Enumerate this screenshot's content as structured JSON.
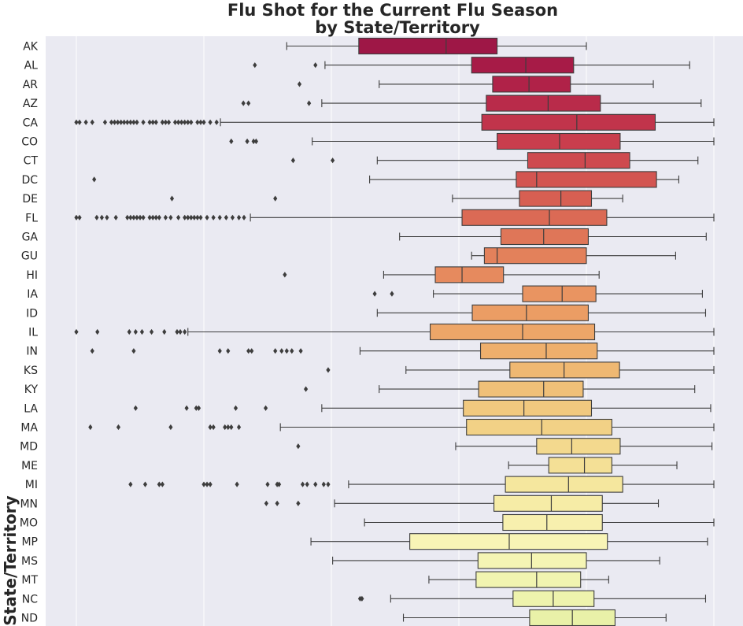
{
  "chart_data": {
    "type": "boxplot",
    "orientation": "horizontal",
    "title": "Flu Shot for the Current Flu Season\nby State/Territory",
    "ylabel": "State/Territory",
    "xlabel": "",
    "xlim": [
      -0.12,
      1.0
    ],
    "x_gridlines": [
      0.0,
      0.2,
      0.4,
      0.6,
      0.8,
      1.0
    ],
    "grid": true,
    "colormap": "Spectral (red to yellow-green)",
    "categories": [
      "AK",
      "AL",
      "AR",
      "AZ",
      "CA",
      "CO",
      "CT",
      "DC",
      "DE",
      "FL",
      "GA",
      "GU",
      "HI",
      "IA",
      "ID",
      "IL",
      "IN",
      "KS",
      "KY",
      "LA",
      "MA",
      "MD",
      "ME",
      "MI",
      "MN",
      "MO",
      "MP",
      "MS",
      "MT",
      "NC",
      "ND"
    ],
    "boxes": [
      {
        "state": "AK",
        "color": "#9e1746",
        "whislo": 0.33,
        "q1": 0.443,
        "med": 0.58,
        "q3": 0.66,
        "whishi": 0.8,
        "fliers": []
      },
      {
        "state": "AL",
        "color": "#a71b47",
        "whislo": 0.39,
        "q1": 0.62,
        "med": 0.705,
        "q3": 0.78,
        "whishi": 0.962,
        "fliers": [
          0.28,
          0.375
        ]
      },
      {
        "state": "AR",
        "color": "#b02248",
        "whislo": 0.475,
        "q1": 0.653,
        "med": 0.71,
        "q3": 0.775,
        "whishi": 0.905,
        "fliers": [
          0.35
        ]
      },
      {
        "state": "AZ",
        "color": "#b92b4a",
        "whislo": 0.385,
        "q1": 0.643,
        "med": 0.74,
        "q3": 0.822,
        "whishi": 0.98,
        "fliers": [
          0.262,
          0.27,
          0.365
        ]
      },
      {
        "state": "CA",
        "color": "#c1344b",
        "whislo": 0.226,
        "q1": 0.636,
        "med": 0.785,
        "q3": 0.908,
        "whishi": 1.0,
        "fliers": [
          0.0,
          0.005,
          0.015,
          0.025,
          0.045,
          0.055,
          0.06,
          0.065,
          0.07,
          0.075,
          0.08,
          0.085,
          0.09,
          0.095,
          0.105,
          0.115,
          0.12,
          0.125,
          0.135,
          0.14,
          0.145,
          0.155,
          0.16,
          0.165,
          0.17,
          0.175,
          0.18,
          0.19,
          0.195,
          0.2,
          0.21,
          0.22
        ]
      },
      {
        "state": "CO",
        "color": "#c93e4d",
        "whislo": 0.37,
        "q1": 0.66,
        "med": 0.758,
        "q3": 0.853,
        "whishi": 1.0,
        "fliers": [
          0.243,
          0.268,
          0.278,
          0.282
        ]
      },
      {
        "state": "CT",
        "color": "#ce4a4f",
        "whislo": 0.472,
        "q1": 0.708,
        "med": 0.798,
        "q3": 0.868,
        "whishi": 0.975,
        "fliers": [
          0.34,
          0.402
        ]
      },
      {
        "state": "DC",
        "color": "#d35551",
        "whislo": 0.46,
        "q1": 0.69,
        "med": 0.722,
        "q3": 0.91,
        "whishi": 0.945,
        "fliers": [
          0.028
        ]
      },
      {
        "state": "DE",
        "color": "#d75f52",
        "whislo": 0.59,
        "q1": 0.695,
        "med": 0.76,
        "q3": 0.808,
        "whishi": 0.857,
        "fliers": [
          0.15,
          0.312
        ]
      },
      {
        "state": "FL",
        "color": "#db6a55",
        "whislo": 0.273,
        "q1": 0.605,
        "med": 0.742,
        "q3": 0.832,
        "whishi": 1.0,
        "fliers": [
          0.0,
          0.005,
          0.032,
          0.04,
          0.048,
          0.062,
          0.08,
          0.085,
          0.09,
          0.095,
          0.1,
          0.105,
          0.115,
          0.12,
          0.125,
          0.13,
          0.14,
          0.148,
          0.16,
          0.17,
          0.175,
          0.18,
          0.185,
          0.19,
          0.195,
          0.205,
          0.215,
          0.225,
          0.235,
          0.245,
          0.255,
          0.263
        ]
      },
      {
        "state": "GA",
        "color": "#df7658",
        "whislo": 0.507,
        "q1": 0.666,
        "med": 0.733,
        "q3": 0.803,
        "whishi": 0.988,
        "fliers": []
      },
      {
        "state": "GU",
        "color": "#e3815b",
        "whislo": 0.62,
        "q1": 0.64,
        "med": 0.66,
        "q3": 0.8,
        "whishi": 0.94,
        "fliers": []
      },
      {
        "state": "HI",
        "color": "#e68a5e",
        "whislo": 0.482,
        "q1": 0.563,
        "med": 0.605,
        "q3": 0.67,
        "whishi": 0.82,
        "fliers": [
          0.327
        ]
      },
      {
        "state": "IA",
        "color": "#e99461",
        "whislo": 0.56,
        "q1": 0.7,
        "med": 0.762,
        "q3": 0.815,
        "whishi": 0.982,
        "fliers": [
          0.468,
          0.495
        ]
      },
      {
        "state": "ID",
        "color": "#eb9d64",
        "whislo": 0.472,
        "q1": 0.621,
        "med": 0.706,
        "q3": 0.803,
        "whishi": 0.987,
        "fliers": []
      },
      {
        "state": "IL",
        "color": "#eda668",
        "whislo": 0.175,
        "q1": 0.555,
        "med": 0.7,
        "q3": 0.813,
        "whishi": 1.0,
        "fliers": [
          0.0,
          0.033,
          0.083,
          0.093,
          0.103,
          0.118,
          0.138,
          0.158,
          0.163,
          0.17
        ]
      },
      {
        "state": "IN",
        "color": "#eeaf6c",
        "whislo": 0.445,
        "q1": 0.634,
        "med": 0.737,
        "q3": 0.817,
        "whishi": 1.0,
        "fliers": [
          0.025,
          0.09,
          0.225,
          0.238,
          0.27,
          0.275,
          0.312,
          0.322,
          0.33,
          0.338,
          0.352
        ]
      },
      {
        "state": "KS",
        "color": "#efb872",
        "whislo": 0.517,
        "q1": 0.68,
        "med": 0.765,
        "q3": 0.852,
        "whishi": 1.0,
        "fliers": [
          0.395
        ]
      },
      {
        "state": "KY",
        "color": "#f0c078",
        "whislo": 0.475,
        "q1": 0.631,
        "med": 0.733,
        "q3": 0.795,
        "whishi": 0.97,
        "fliers": [
          0.36
        ]
      },
      {
        "state": "LA",
        "color": "#f1c97f",
        "whislo": 0.385,
        "q1": 0.607,
        "med": 0.702,
        "q3": 0.808,
        "whishi": 0.995,
        "fliers": [
          0.093,
          0.173,
          0.188,
          0.192,
          0.25,
          0.297
        ]
      },
      {
        "state": "MA",
        "color": "#f2d186",
        "whislo": 0.32,
        "q1": 0.612,
        "med": 0.73,
        "q3": 0.84,
        "whishi": 1.0,
        "fliers": [
          0.022,
          0.066,
          0.148,
          0.21,
          0.215,
          0.233,
          0.238,
          0.243,
          0.255
        ]
      },
      {
        "state": "MD",
        "color": "#f3d98e",
        "whislo": 0.595,
        "q1": 0.722,
        "med": 0.777,
        "q3": 0.853,
        "whishi": 0.997,
        "fliers": [
          0.348
        ]
      },
      {
        "state": "ME",
        "color": "#f4e096",
        "whislo": 0.678,
        "q1": 0.741,
        "med": 0.797,
        "q3": 0.84,
        "whishi": 0.942,
        "fliers": []
      },
      {
        "state": "MI",
        "color": "#f5e79e",
        "whislo": 0.427,
        "q1": 0.673,
        "med": 0.772,
        "q3": 0.857,
        "whishi": 1.0,
        "fliers": [
          0.085,
          0.108,
          0.13,
          0.135,
          0.2,
          0.205,
          0.21,
          0.252,
          0.3,
          0.315,
          0.318,
          0.355,
          0.362,
          0.375,
          0.388,
          0.395
        ]
      },
      {
        "state": "MN",
        "color": "#f6eca6",
        "whislo": 0.405,
        "q1": 0.655,
        "med": 0.745,
        "q3": 0.825,
        "whishi": 0.913,
        "fliers": [
          0.298,
          0.315,
          0.348
        ]
      },
      {
        "state": "MO",
        "color": "#f7f0ae",
        "whislo": 0.452,
        "q1": 0.669,
        "med": 0.738,
        "q3": 0.825,
        "whishi": 1.0,
        "fliers": []
      },
      {
        "state": "MP",
        "color": "#f8f4b6",
        "whislo": 0.368,
        "q1": 0.523,
        "med": 0.679,
        "q3": 0.833,
        "whishi": 0.99,
        "fliers": []
      },
      {
        "state": "MS",
        "color": "#f5f5b4",
        "whislo": 0.402,
        "q1": 0.63,
        "med": 0.714,
        "q3": 0.8,
        "whishi": 0.915,
        "fliers": []
      },
      {
        "state": "MT",
        "color": "#f1f4b0",
        "whislo": 0.553,
        "q1": 0.627,
        "med": 0.722,
        "q3": 0.791,
        "whishi": 0.835,
        "fliers": []
      },
      {
        "state": "NC",
        "color": "#eef3ad",
        "whislo": 0.493,
        "q1": 0.685,
        "med": 0.748,
        "q3": 0.812,
        "whishi": 0.987,
        "fliers": [
          0.445,
          0.448
        ]
      },
      {
        "state": "ND",
        "color": "#e9f1a8",
        "whislo": 0.513,
        "q1": 0.711,
        "med": 0.778,
        "q3": 0.845,
        "whishi": 0.925,
        "fliers": []
      }
    ]
  }
}
